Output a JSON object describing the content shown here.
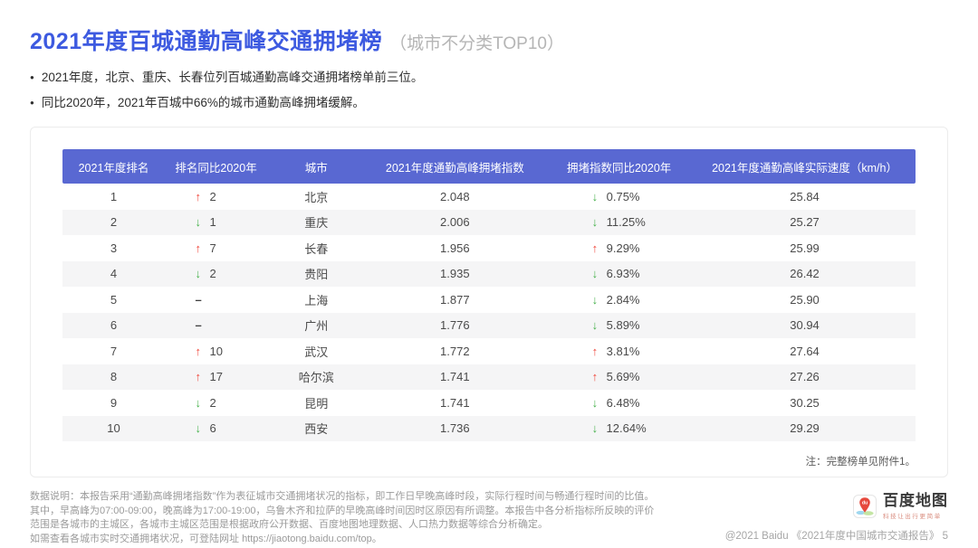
{
  "header": {
    "title": "2021年度百城通勤高峰交通拥堵榜",
    "subtitle": "（城市不分类TOP10）"
  },
  "bullets": [
    "2021年度，北京、重庆、长春位列百城通勤高峰交通拥堵榜单前三位。",
    "同比2020年，2021年百城中66%的城市通勤高峰拥堵缓解。"
  ],
  "icons": {
    "bullet": "●",
    "up_arrow": "↑",
    "down_arrow": "↓",
    "dash": "–"
  },
  "table": {
    "headers": [
      "2021年度排名",
      "排名同比2020年",
      "城市",
      "2021年度通勤高峰拥堵指数",
      "拥堵指数同比2020年",
      "2021年度通勤高峰实际速度（km/h）"
    ],
    "rows": [
      {
        "rank": "1",
        "rank_change_dir": "up",
        "rank_change": "2",
        "city": "北京",
        "index": "2.048",
        "index_change_dir": "down",
        "index_change": "0.75%",
        "speed": "25.84"
      },
      {
        "rank": "2",
        "rank_change_dir": "down",
        "rank_change": "1",
        "city": "重庆",
        "index": "2.006",
        "index_change_dir": "down",
        "index_change": "11.25%",
        "speed": "25.27"
      },
      {
        "rank": "3",
        "rank_change_dir": "up",
        "rank_change": "7",
        "city": "长春",
        "index": "1.956",
        "index_change_dir": "up",
        "index_change": "9.29%",
        "speed": "25.99"
      },
      {
        "rank": "4",
        "rank_change_dir": "down",
        "rank_change": "2",
        "city": "贵阳",
        "index": "1.935",
        "index_change_dir": "down",
        "index_change": "6.93%",
        "speed": "26.42"
      },
      {
        "rank": "5",
        "rank_change_dir": "none",
        "rank_change": "–",
        "city": "上海",
        "index": "1.877",
        "index_change_dir": "down",
        "index_change": "2.84%",
        "speed": "25.90"
      },
      {
        "rank": "6",
        "rank_change_dir": "none",
        "rank_change": "–",
        "city": "广州",
        "index": "1.776",
        "index_change_dir": "down",
        "index_change": "5.89%",
        "speed": "30.94"
      },
      {
        "rank": "7",
        "rank_change_dir": "up",
        "rank_change": "10",
        "city": "武汉",
        "index": "1.772",
        "index_change_dir": "up",
        "index_change": "3.81%",
        "speed": "27.64"
      },
      {
        "rank": "8",
        "rank_change_dir": "up",
        "rank_change": "17",
        "city": "哈尔滨",
        "index": "1.741",
        "index_change_dir": "up",
        "index_change": "5.69%",
        "speed": "27.26"
      },
      {
        "rank": "9",
        "rank_change_dir": "down",
        "rank_change": "2",
        "city": "昆明",
        "index": "1.741",
        "index_change_dir": "down",
        "index_change": "6.48%",
        "speed": "30.25"
      },
      {
        "rank": "10",
        "rank_change_dir": "down",
        "rank_change": "6",
        "city": "西安",
        "index": "1.736",
        "index_change_dir": "down",
        "index_change": "12.64%",
        "speed": "29.29"
      }
    ],
    "note": "注：完整榜单见附件1。"
  },
  "footer": {
    "description": "数据说明：本报告采用“通勤高峰拥堵指数”作为表征城市交通拥堵状况的指标，即工作日早晚高峰时段，实际行程时间与畅通行程时间的比值。其中，早高峰为07:00-09:00，晚高峰为17:00-19:00，乌鲁木齐和拉萨的早晚高峰时间因时区原因有所调整。本报告中各分析指标所反映的评价范围是各城市的主城区，各城市主城区范围是根据政府公开数据、百度地图地理数据、人口热力数据等综合分析确定。",
    "link_prefix": "如需查看各城市实时交通拥堵状况，可登陆网址 ",
    "link_url": "https://jiaotong.baidu.com/top",
    "link_suffix": "。",
    "logo_text": "百度地图",
    "logo_tagline": "科技让出行更简单",
    "copyright": "@2021 Baidu 《2021年度中国城市交通报告》",
    "page_number": "5"
  },
  "colors": {
    "title": "#3D5AE0",
    "table_header_bg": "#5968D2",
    "up": "#F0483C",
    "down": "#46B14B"
  }
}
